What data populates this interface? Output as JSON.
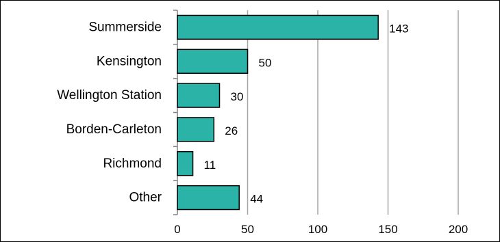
{
  "chart_data": {
    "type": "bar",
    "orientation": "horizontal",
    "categories": [
      "Summerside",
      "Kensington",
      "Wellington Station",
      "Borden-Carleton",
      "Richmond",
      "Other"
    ],
    "values": [
      143,
      50,
      30,
      26,
      11,
      44
    ],
    "value_labels": [
      "143",
      "50",
      "30",
      "26",
      "11",
      "44"
    ],
    "xlim": [
      0,
      200
    ],
    "x_ticks": [
      0,
      50,
      100,
      150,
      200
    ],
    "x_tick_labels": [
      "0",
      "50",
      "100",
      "150",
      "200"
    ],
    "title": "",
    "xlabel": "",
    "ylabel": "",
    "grid": "vertical",
    "legend": "none",
    "bar_color": "#2ab3a6",
    "bar_border_color": "#000000",
    "grid_color": "#a6a6a6",
    "frame_color": "#000000"
  }
}
